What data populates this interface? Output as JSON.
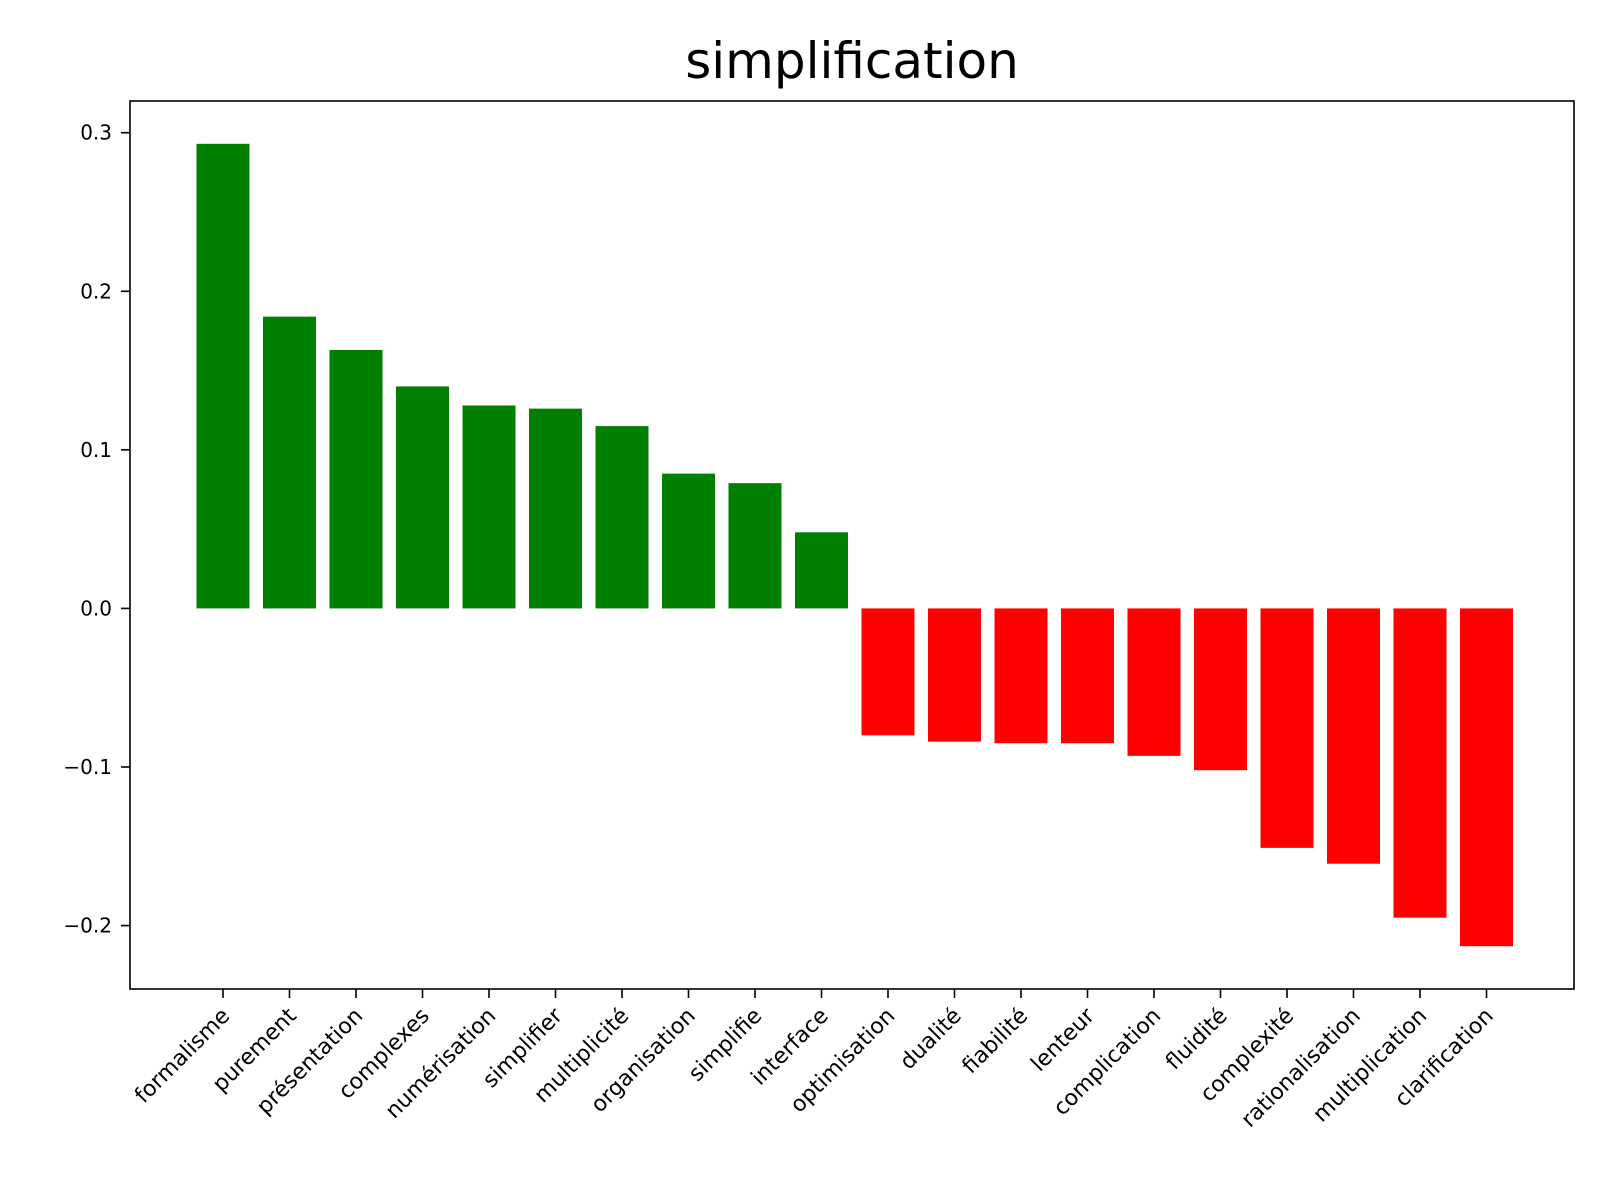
{
  "chart_data": {
    "type": "bar",
    "title": "simplification",
    "xlabel": "",
    "ylabel": "",
    "categories": [
      "formalisme",
      "purement",
      "présentation",
      "complexes",
      "numérisation",
      "simplifier",
      "multiplicité",
      "organisation",
      "simplifie",
      "interface",
      "optimisation",
      "dualité",
      "fiabilité",
      "lenteur",
      "complication",
      "fluidité",
      "complexité",
      "rationalisation",
      "multiplication",
      "clarification"
    ],
    "values": [
      0.293,
      0.184,
      0.163,
      0.14,
      0.128,
      0.126,
      0.115,
      0.085,
      0.079,
      0.048,
      -0.08,
      -0.084,
      -0.085,
      -0.085,
      -0.093,
      -0.102,
      -0.151,
      -0.161,
      -0.195,
      -0.213
    ],
    "ylim": [
      -0.24,
      0.32
    ],
    "yticks": [
      0.3,
      0.2,
      0.1,
      0.0,
      -0.1,
      -0.2
    ],
    "ytick_labels": [
      "0.3",
      "0.2",
      "0.1",
      "0.0",
      "−0.1",
      "−0.2"
    ],
    "colors": {
      "positive": "#008000",
      "negative": "#ff0000"
    },
    "grid": false,
    "legend": "none"
  }
}
